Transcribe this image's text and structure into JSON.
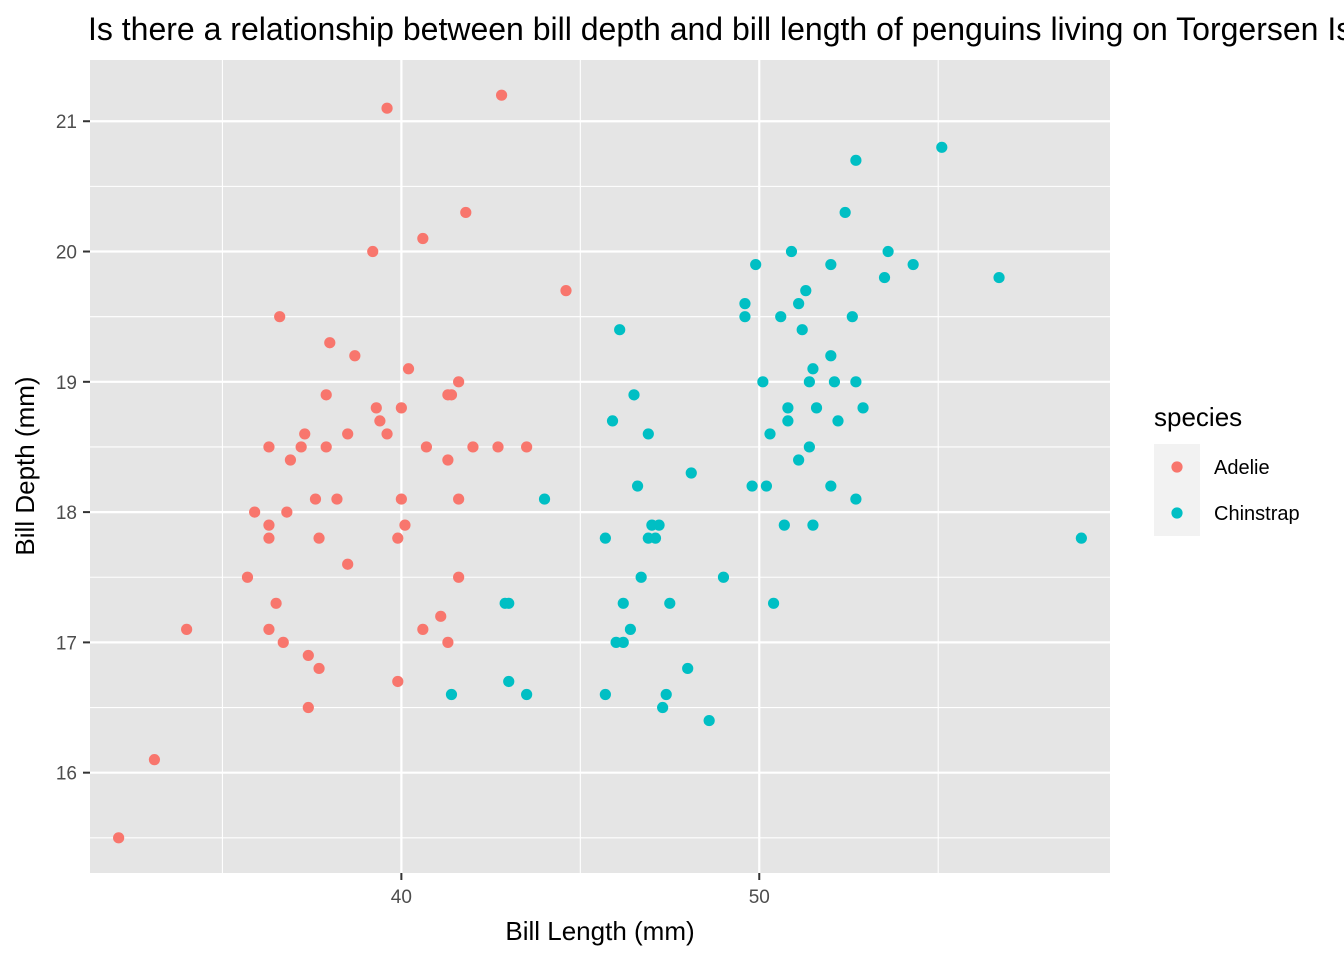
{
  "chart_data": {
    "type": "scatter",
    "title": "Is there a relationship between bill depth and bill length of penguins living on Torgersen Island?",
    "xlabel": "Bill Length (mm)",
    "ylabel": "Bill Depth (mm)",
    "xlim": [
      31.3,
      59.8
    ],
    "ylim": [
      15.23,
      21.47
    ],
    "xticks": [
      40,
      50
    ],
    "yticks": [
      16,
      17,
      18,
      19,
      20,
      21
    ],
    "grid": true,
    "legend": {
      "title": "species",
      "position": "right"
    },
    "series": [
      {
        "name": "Adelie",
        "color": "#F8766D",
        "points": [
          [
            32.1,
            15.5
          ],
          [
            33.1,
            16.1
          ],
          [
            34.0,
            17.1
          ],
          [
            35.7,
            17.5
          ],
          [
            35.9,
            18.0
          ],
          [
            36.3,
            17.9
          ],
          [
            36.3,
            17.8
          ],
          [
            36.3,
            17.1
          ],
          [
            36.3,
            18.5
          ],
          [
            36.5,
            17.3
          ],
          [
            36.6,
            19.5
          ],
          [
            36.7,
            17.0
          ],
          [
            36.8,
            18.0
          ],
          [
            36.9,
            18.4
          ],
          [
            37.2,
            18.5
          ],
          [
            37.3,
            18.6
          ],
          [
            37.4,
            16.9
          ],
          [
            37.4,
            16.5
          ],
          [
            37.6,
            18.1
          ],
          [
            37.7,
            16.8
          ],
          [
            37.7,
            17.8
          ],
          [
            37.9,
            18.9
          ],
          [
            37.9,
            18.5
          ],
          [
            38.0,
            19.3
          ],
          [
            38.2,
            18.1
          ],
          [
            38.5,
            17.6
          ],
          [
            38.5,
            18.6
          ],
          [
            38.7,
            19.2
          ],
          [
            39.2,
            20.0
          ],
          [
            39.3,
            18.8
          ],
          [
            39.4,
            18.7
          ],
          [
            39.6,
            21.1
          ],
          [
            39.6,
            18.6
          ],
          [
            39.9,
            17.8
          ],
          [
            39.9,
            16.7
          ],
          [
            40.0,
            18.8
          ],
          [
            40.0,
            18.1
          ],
          [
            40.1,
            17.9
          ],
          [
            40.2,
            19.1
          ],
          [
            40.6,
            20.1
          ],
          [
            40.6,
            17.1
          ],
          [
            40.7,
            18.5
          ],
          [
            41.1,
            17.2
          ],
          [
            41.3,
            17.0
          ],
          [
            41.3,
            18.4
          ],
          [
            41.3,
            18.9
          ],
          [
            41.4,
            18.9
          ],
          [
            41.6,
            19.0
          ],
          [
            41.6,
            18.1
          ],
          [
            41.6,
            17.5
          ],
          [
            41.8,
            20.3
          ],
          [
            42.0,
            18.5
          ],
          [
            42.7,
            18.5
          ],
          [
            42.8,
            21.2
          ],
          [
            43.5,
            18.5
          ],
          [
            44.6,
            19.7
          ]
        ]
      },
      {
        "name": "Chinstrap",
        "color": "#00BFC4",
        "points": [
          [
            41.4,
            16.6
          ],
          [
            42.9,
            17.3
          ],
          [
            43.0,
            17.3
          ],
          [
            43.0,
            16.7
          ],
          [
            43.5,
            16.6
          ],
          [
            44.0,
            18.1
          ],
          [
            45.7,
            17.8
          ],
          [
            45.7,
            16.6
          ],
          [
            45.9,
            18.7
          ],
          [
            46.0,
            17.0
          ],
          [
            46.1,
            19.4
          ],
          [
            46.2,
            17.3
          ],
          [
            46.2,
            17.0
          ],
          [
            46.4,
            17.1
          ],
          [
            46.5,
            18.9
          ],
          [
            46.6,
            18.2
          ],
          [
            46.7,
            17.5
          ],
          [
            46.9,
            17.8
          ],
          [
            46.9,
            18.6
          ],
          [
            47.0,
            17.9
          ],
          [
            47.1,
            17.8
          ],
          [
            47.2,
            17.9
          ],
          [
            47.3,
            16.5
          ],
          [
            47.4,
            16.6
          ],
          [
            47.5,
            17.3
          ],
          [
            48.0,
            16.8
          ],
          [
            48.1,
            18.3
          ],
          [
            48.6,
            16.4
          ],
          [
            49.0,
            17.5
          ],
          [
            49.6,
            19.6
          ],
          [
            49.6,
            19.5
          ],
          [
            49.8,
            18.2
          ],
          [
            49.9,
            19.9
          ],
          [
            50.1,
            19.0
          ],
          [
            50.2,
            18.2
          ],
          [
            50.3,
            18.6
          ],
          [
            50.4,
            17.3
          ],
          [
            50.6,
            19.5
          ],
          [
            50.7,
            17.9
          ],
          [
            50.8,
            18.7
          ],
          [
            50.8,
            18.8
          ],
          [
            50.9,
            20.0
          ],
          [
            51.1,
            18.4
          ],
          [
            51.1,
            19.6
          ],
          [
            51.2,
            19.4
          ],
          [
            51.3,
            19.7
          ],
          [
            51.4,
            19.0
          ],
          [
            51.4,
            18.5
          ],
          [
            51.5,
            17.9
          ],
          [
            51.5,
            19.1
          ],
          [
            51.6,
            18.8
          ],
          [
            52.0,
            19.9
          ],
          [
            52.0,
            18.2
          ],
          [
            52.0,
            19.2
          ],
          [
            52.1,
            19.0
          ],
          [
            52.2,
            18.7
          ],
          [
            52.4,
            20.3
          ],
          [
            52.6,
            19.5
          ],
          [
            52.7,
            19.0
          ],
          [
            52.7,
            18.1
          ],
          [
            52.7,
            20.7
          ],
          [
            52.9,
            18.8
          ],
          [
            53.5,
            19.8
          ],
          [
            53.6,
            20.0
          ],
          [
            54.3,
            19.9
          ],
          [
            55.1,
            20.8
          ],
          [
            56.7,
            19.8
          ],
          [
            59.0,
            17.8
          ]
        ]
      }
    ]
  }
}
